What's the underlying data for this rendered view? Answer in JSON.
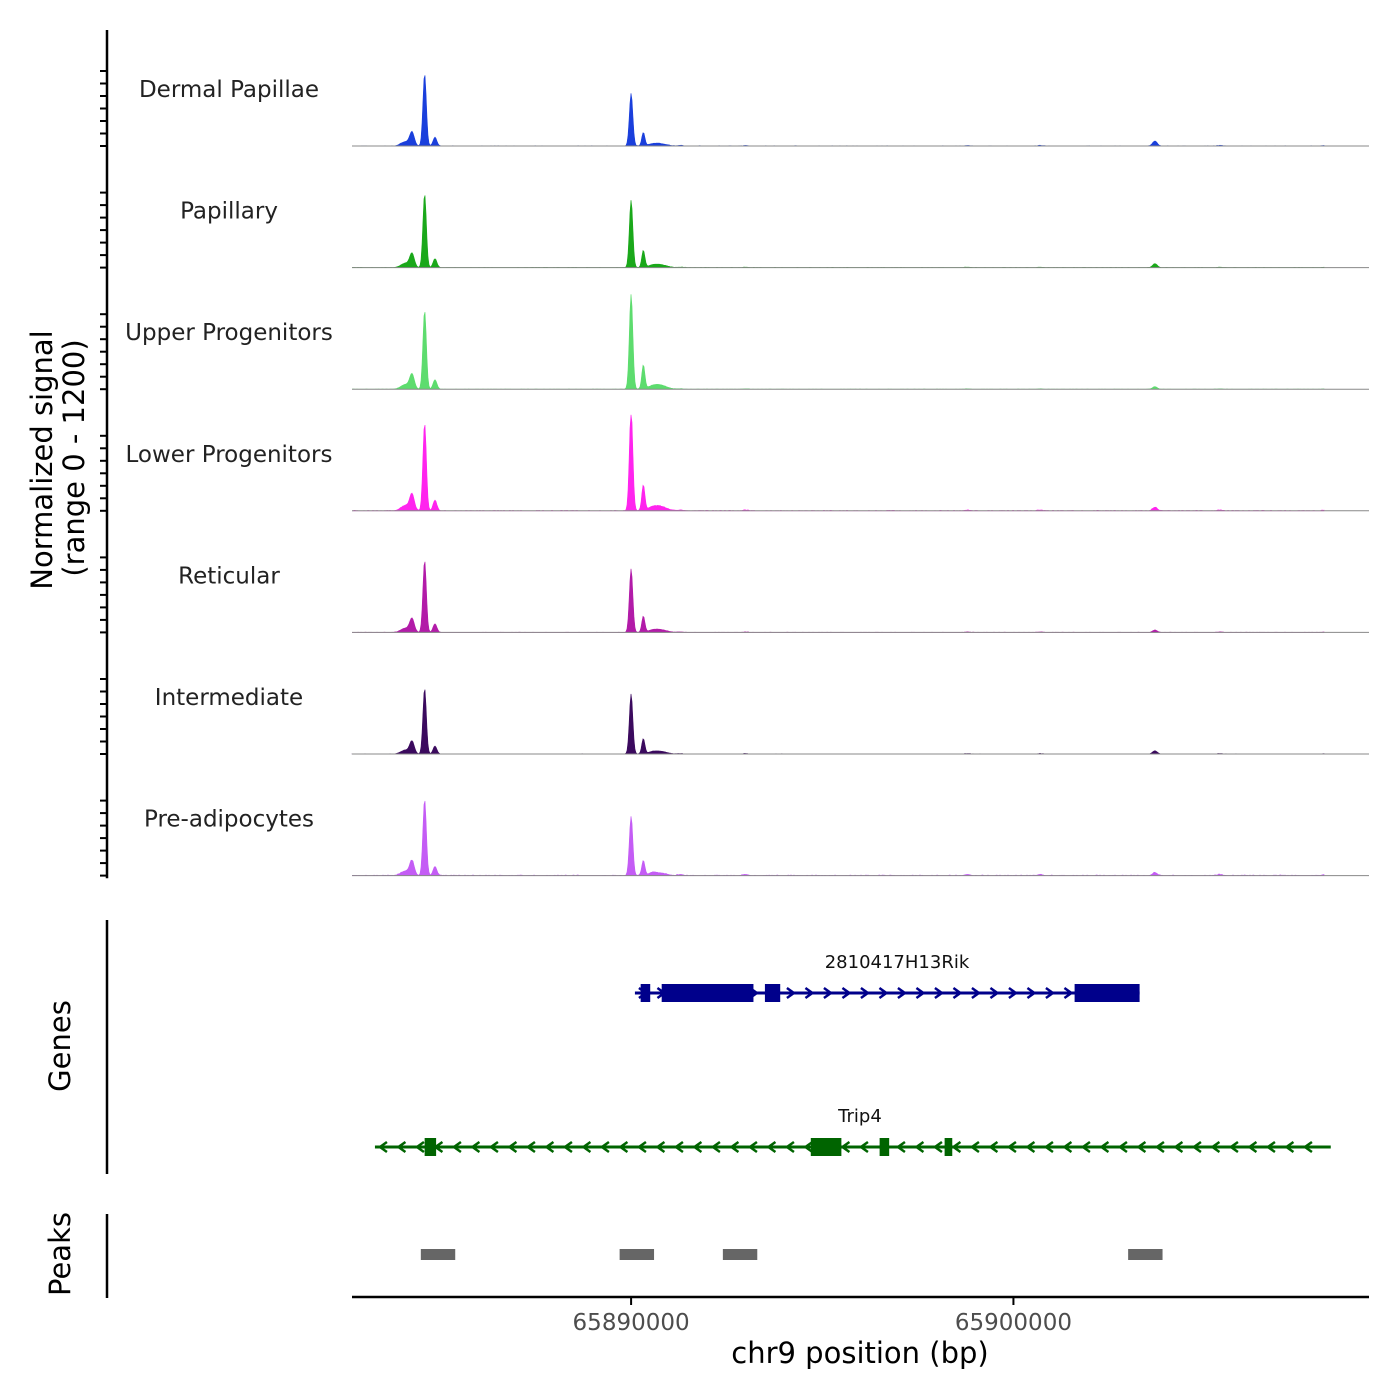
{
  "chart_data": {
    "type": "area",
    "title": "",
    "ylabel_line1": "Normalized signal",
    "ylabel_line2": "(range 0 - 1200)",
    "xlabel": "chr9 position (bp)",
    "xlim": [
      65882700,
      65909300
    ],
    "ylim": [
      0,
      1200
    ],
    "x_ticks": [
      {
        "value": 65890000,
        "label": "65890000"
      },
      {
        "value": 65900000,
        "label": "65900000"
      }
    ],
    "tracks": [
      {
        "name": "Dermal Papillae",
        "color": "#1a3fdc",
        "peak1": 1150,
        "peak2": 840,
        "distal": 70,
        "noise": 14
      },
      {
        "name": "Papillary",
        "color": "#1aa81a",
        "peak1": 1180,
        "peak2": 1080,
        "distal": 55,
        "noise": 12
      },
      {
        "name": "Upper Progenitors",
        "color": "#5ddc6e",
        "peak1": 1260,
        "peak2": 1520,
        "distal": 35,
        "noise": 10
      },
      {
        "name": "Lower Progenitors",
        "color": "#ff24ee",
        "peak1": 1400,
        "peak2": 1620,
        "distal": 45,
        "noise": 20
      },
      {
        "name": "Reticular",
        "color": "#b21ba8",
        "peak1": 1150,
        "peak2": 1020,
        "distal": 30,
        "noise": 12
      },
      {
        "name": "Intermediate",
        "color": "#3b0a5e",
        "peak1": 1050,
        "peak2": 960,
        "distal": 45,
        "noise": 12
      },
      {
        "name": "Pre-adipocytes",
        "color": "#c45cf5",
        "peak1": 1220,
        "peak2": 950,
        "distal": 30,
        "noise": 32
      }
    ],
    "peak_centers": [
      65884600,
      65889800,
      65890550,
      65891300,
      65893000,
      65898800,
      65900700,
      65903700,
      65905400,
      65908150
    ],
    "genes_title": "Genes",
    "genes": [
      {
        "name": "2810417H13Rik",
        "strand": "+",
        "color": "#00008b",
        "start": 65890100,
        "end": 65903300,
        "exons": [
          [
            65890250,
            65890500
          ],
          [
            65890800,
            65893200
          ],
          [
            65893500,
            65893900
          ],
          [
            65901600,
            65903300
          ]
        ]
      },
      {
        "name": "Trip4",
        "strand": "-",
        "color": "#006400",
        "start": 65883300,
        "end": 65908300,
        "exons": [
          [
            65884600,
            65884900
          ],
          [
            65894700,
            65895500
          ],
          [
            65896500,
            65896750
          ],
          [
            65898200,
            65898400
          ]
        ]
      }
    ],
    "peaks_title": "Peaks",
    "peaks_color": "#666666",
    "peak_regions": [
      [
        65884500,
        65885400
      ],
      [
        65889700,
        65890600
      ],
      [
        65892400,
        65893300
      ],
      [
        65903000,
        65903900
      ]
    ]
  }
}
